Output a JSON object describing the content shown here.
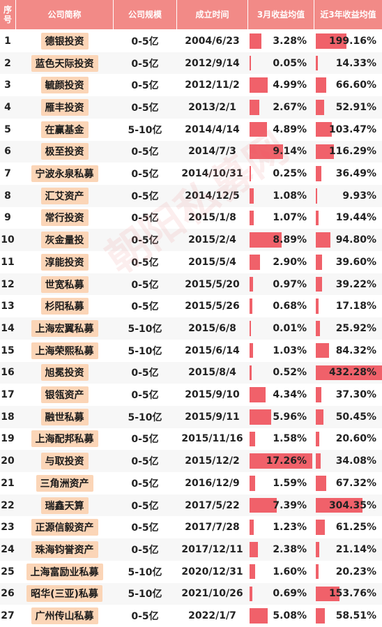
{
  "header": {
    "no": "序\n号",
    "name": "公司简称",
    "scale": "公司规模",
    "founded": "成立时间",
    "ret3m": "3月收益均值",
    "ret3y": "近3年收益均值"
  },
  "watermark": "朝阳私募网",
  "colors": {
    "header_bg": "#f28a87",
    "bar": "#f0616a",
    "pill": "#fbd5b7"
  },
  "rows": [
    {
      "no": "1",
      "name": "德银投资",
      "scale": "0-5亿",
      "founded": "2004/6/23",
      "ret3m": "3.28%",
      "ret3m_val": 3.28,
      "ret3y": "199.16%",
      "ret3y_val": 199.16
    },
    {
      "no": "2",
      "name": "蓝色天际投资",
      "scale": "0-5亿",
      "founded": "2012/9/14",
      "ret3m": "0.05%",
      "ret3m_val": 0.05,
      "ret3y": "14.33%",
      "ret3y_val": 14.33
    },
    {
      "no": "3",
      "name": "毓颜投资",
      "scale": "0-5亿",
      "founded": "2012/11/2",
      "ret3m": "4.99%",
      "ret3m_val": 4.99,
      "ret3y": "66.60%",
      "ret3y_val": 66.6
    },
    {
      "no": "4",
      "name": "雁丰投资",
      "scale": "0-5亿",
      "founded": "2013/2/1",
      "ret3m": "2.67%",
      "ret3m_val": 2.67,
      "ret3y": "52.91%",
      "ret3y_val": 52.91
    },
    {
      "no": "5",
      "name": "在赢基金",
      "scale": "5-10亿",
      "founded": "2014/4/14",
      "ret3m": "4.89%",
      "ret3m_val": 4.89,
      "ret3y": "103.47%",
      "ret3y_val": 103.47
    },
    {
      "no": "6",
      "name": "极至投资",
      "scale": "0-5亿",
      "founded": "2014/7/3",
      "ret3m": "9.14%",
      "ret3m_val": 9.14,
      "ret3y": "116.29%",
      "ret3y_val": 116.29
    },
    {
      "no": "7",
      "name": "宁波永泉私募",
      "scale": "0-5亿",
      "founded": "2014/10/31",
      "ret3m": "0.25%",
      "ret3m_val": 0.25,
      "ret3y": "36.49%",
      "ret3y_val": 36.49
    },
    {
      "no": "8",
      "name": "汇艾资产",
      "scale": "0-5亿",
      "founded": "2014/12/5",
      "ret3m": "1.08%",
      "ret3m_val": 1.08,
      "ret3y": "9.93%",
      "ret3y_val": 9.93
    },
    {
      "no": "9",
      "name": "常行投资",
      "scale": "0-5亿",
      "founded": "2015/1/8",
      "ret3m": "1.07%",
      "ret3m_val": 1.07,
      "ret3y": "19.44%",
      "ret3y_val": 19.44
    },
    {
      "no": "10",
      "name": "灰金量投",
      "scale": "0-5亿",
      "founded": "2015/2/4",
      "ret3m": "8.89%",
      "ret3m_val": 8.89,
      "ret3y": "94.80%",
      "ret3y_val": 94.8
    },
    {
      "no": "11",
      "name": "淳能投资",
      "scale": "0-5亿",
      "founded": "2015/5/4",
      "ret3m": "2.90%",
      "ret3m_val": 2.9,
      "ret3y": "39.60%",
      "ret3y_val": 39.6
    },
    {
      "no": "12",
      "name": "世宽私募",
      "scale": "0-5亿",
      "founded": "2015/5/20",
      "ret3m": "0.97%",
      "ret3m_val": 0.97,
      "ret3y": "39.22%",
      "ret3y_val": 39.22
    },
    {
      "no": "13",
      "name": "杉阳私募",
      "scale": "0-5亿",
      "founded": "2015/5/26",
      "ret3m": "0.68%",
      "ret3m_val": 0.68,
      "ret3y": "17.18%",
      "ret3y_val": 17.18
    },
    {
      "no": "14",
      "name": "上海宏翼私募",
      "scale": "5-10亿",
      "founded": "2015/6/8",
      "ret3m": "0.01%",
      "ret3m_val": 0.01,
      "ret3y": "25.92%",
      "ret3y_val": 25.92
    },
    {
      "no": "15",
      "name": "上海荣熙私募",
      "scale": "5-10亿",
      "founded": "2015/6/14",
      "ret3m": "1.03%",
      "ret3m_val": 1.03,
      "ret3y": "84.32%",
      "ret3y_val": 84.32
    },
    {
      "no": "16",
      "name": "旭冕投资",
      "scale": "0-5亿",
      "founded": "2015/8/4",
      "ret3m": "0.52%",
      "ret3m_val": 0.52,
      "ret3y": "432.28%",
      "ret3y_val": 432.28
    },
    {
      "no": "17",
      "name": "银瓴资产",
      "scale": "0-5亿",
      "founded": "2015/9/10",
      "ret3m": "4.34%",
      "ret3m_val": 4.34,
      "ret3y": "37.30%",
      "ret3y_val": 37.3
    },
    {
      "no": "18",
      "name": "融世私募",
      "scale": "5-10亿",
      "founded": "2015/9/11",
      "ret3m": "5.96%",
      "ret3m_val": 5.96,
      "ret3y": "50.45%",
      "ret3y_val": 50.45
    },
    {
      "no": "19",
      "name": "上海配邦私募",
      "scale": "0-5亿",
      "founded": "2015/11/16",
      "ret3m": "1.58%",
      "ret3m_val": 1.58,
      "ret3y": "20.60%",
      "ret3y_val": 20.6
    },
    {
      "no": "20",
      "name": "与取投资",
      "scale": "0-5亿",
      "founded": "2015/12/2",
      "ret3m": "17.26%",
      "ret3m_val": 17.26,
      "ret3y": "34.08%",
      "ret3y_val": 34.08
    },
    {
      "no": "21",
      "name": "三角洲资产",
      "scale": "0-5亿",
      "founded": "2016/12/9",
      "ret3m": "1.59%",
      "ret3m_val": 1.59,
      "ret3y": "67.32%",
      "ret3y_val": 67.32
    },
    {
      "no": "22",
      "name": "瑞鑫天算",
      "scale": "0-5亿",
      "founded": "2017/5/22",
      "ret3m": "7.39%",
      "ret3m_val": 7.39,
      "ret3y": "304.35%",
      "ret3y_val": 304.35
    },
    {
      "no": "23",
      "name": "正源信毅资产",
      "scale": "0-5亿",
      "founded": "2017/7/28",
      "ret3m": "1.23%",
      "ret3m_val": 1.23,
      "ret3y": "61.25%",
      "ret3y_val": 61.25
    },
    {
      "no": "24",
      "name": "珠海钧誉资产",
      "scale": "0-5亿",
      "founded": "2017/12/11",
      "ret3m": "2.38%",
      "ret3m_val": 2.38,
      "ret3y": "21.14%",
      "ret3y_val": 21.14
    },
    {
      "no": "25",
      "name": "上海富励业私募",
      "scale": "5-10亿",
      "founded": "2020/12/31",
      "ret3m": "1.60%",
      "ret3m_val": 1.6,
      "ret3y": "20.23%",
      "ret3y_val": 20.23
    },
    {
      "no": "26",
      "name": "昭华(三亚)私募",
      "scale": "5-10亿",
      "founded": "2021/10/26",
      "ret3m": "0.69%",
      "ret3m_val": 0.69,
      "ret3y": "153.76%",
      "ret3y_val": 153.76
    },
    {
      "no": "27",
      "name": "广州传山私募",
      "scale": "0-5亿",
      "founded": "2022/1/7",
      "ret3m": "5.08%",
      "ret3m_val": 5.08,
      "ret3y": "58.51%",
      "ret3y_val": 58.51
    }
  ]
}
